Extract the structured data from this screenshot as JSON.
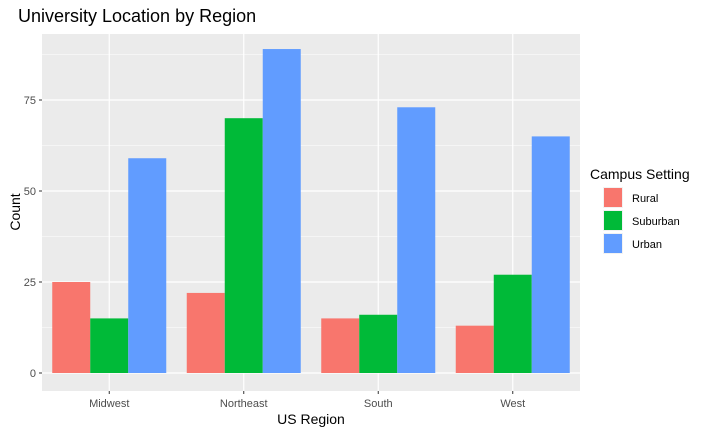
{
  "chart_data": {
    "type": "bar",
    "title": "University Location by Region",
    "xlabel": "US Region",
    "ylabel": "Count",
    "categories": [
      "Midwest",
      "Northeast",
      "South",
      "West"
    ],
    "series": [
      {
        "name": "Rural",
        "color": "#F8766D",
        "values": [
          25,
          22,
          15,
          13
        ]
      },
      {
        "name": "Suburban",
        "color": "#00BA38",
        "values": [
          15,
          70,
          16,
          27
        ]
      },
      {
        "name": "Urban",
        "color": "#619CFF",
        "values": [
          59,
          89,
          73,
          65
        ]
      }
    ],
    "ylim": [
      0,
      89
    ],
    "yticks": [
      0,
      25,
      50,
      75
    ],
    "ytick_labels": [
      "0",
      "25",
      "50",
      "75"
    ],
    "grid": true,
    "panel_background": "#EBEBEB",
    "legend": {
      "title": "Campus Setting",
      "position": "right"
    }
  }
}
